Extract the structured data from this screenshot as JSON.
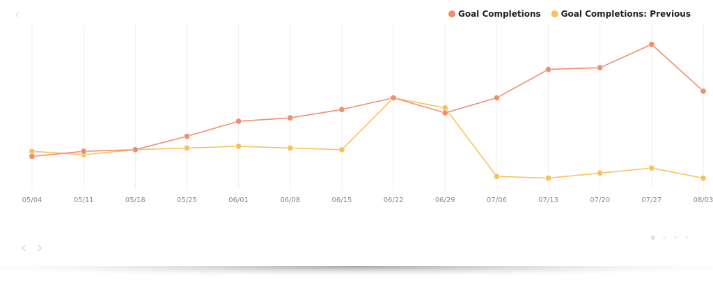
{
  "chart_data": {
    "type": "line",
    "categories": [
      "05/04",
      "05/11",
      "05/18",
      "05/25",
      "06/01",
      "06/08",
      "06/15",
      "06/22",
      "06/29",
      "07/06",
      "07/13",
      "07/20",
      "07/27",
      "08/03"
    ],
    "series": [
      {
        "name": "Goal Completions",
        "color": "#f28d6e",
        "values": [
          19,
          22,
          23,
          31,
          40,
          42,
          47,
          54,
          45,
          54,
          71,
          72,
          86,
          58
        ]
      },
      {
        "name": "Goal Completions: Previous",
        "color": "#f7c25e",
        "values": [
          22,
          20,
          23,
          24,
          25,
          24,
          23,
          54,
          48,
          7,
          6,
          9,
          12,
          6
        ]
      }
    ],
    "ylim": [
      0,
      100
    ],
    "grid": true
  }
}
